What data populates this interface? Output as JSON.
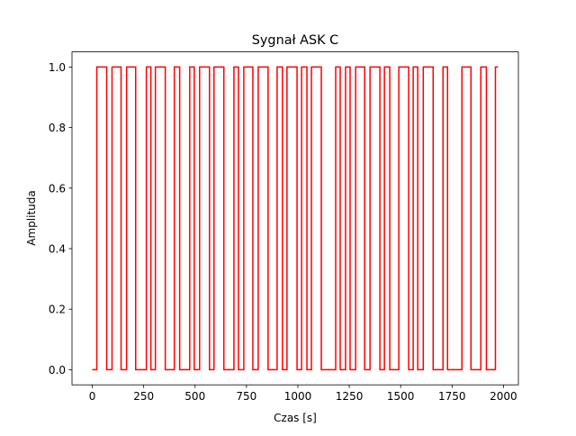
{
  "chart_data": {
    "type": "step",
    "title": "Sygnał ASK C",
    "xlabel": "Czas [s]",
    "ylabel": "Amplituda",
    "color": "#ff0000",
    "x": [
      0,
      22,
      70,
      96,
      140,
      167,
      211,
      263,
      285,
      307,
      355,
      399,
      425,
      474,
      496,
      522,
      570,
      592,
      640,
      689,
      711,
      737,
      781,
      807,
      855,
      899,
      925,
      947,
      996,
      1018,
      1044,
      1066,
      1114,
      1184,
      1206,
      1232,
      1254,
      1281,
      1325,
      1351,
      1399,
      1421,
      1447,
      1491,
      1539,
      1561,
      1583,
      1610,
      1658,
      1706,
      1728,
      1798,
      1842,
      1890,
      1917,
      1961,
      1974
    ],
    "values": [
      0,
      1,
      0,
      1,
      0,
      1,
      0,
      1,
      0,
      1,
      0,
      1,
      0,
      1,
      0,
      1,
      0,
      1,
      0,
      1,
      0,
      1,
      0,
      1,
      0,
      1,
      0,
      1,
      0,
      1,
      0,
      1,
      0,
      1,
      0,
      1,
      0,
      1,
      0,
      1,
      0,
      1,
      0,
      1,
      0,
      1,
      0,
      1,
      0,
      1,
      0,
      1,
      0,
      1,
      0,
      1,
      1
    ],
    "xlim": [
      -98.7,
      2072.7
    ],
    "ylim": [
      -0.05,
      1.05
    ],
    "xticks": [
      0,
      250,
      500,
      750,
      1000,
      1250,
      1500,
      1750,
      2000
    ],
    "yticks": [
      {
        "value": 0,
        "label": "0.0"
      },
      {
        "value": 0.2,
        "label": "0.2"
      },
      {
        "value": 0.4,
        "label": "0.4"
      },
      {
        "value": 0.6,
        "label": "0.6"
      },
      {
        "value": 0.8,
        "label": "0.8"
      },
      {
        "value": 1,
        "label": "1.0"
      }
    ]
  }
}
